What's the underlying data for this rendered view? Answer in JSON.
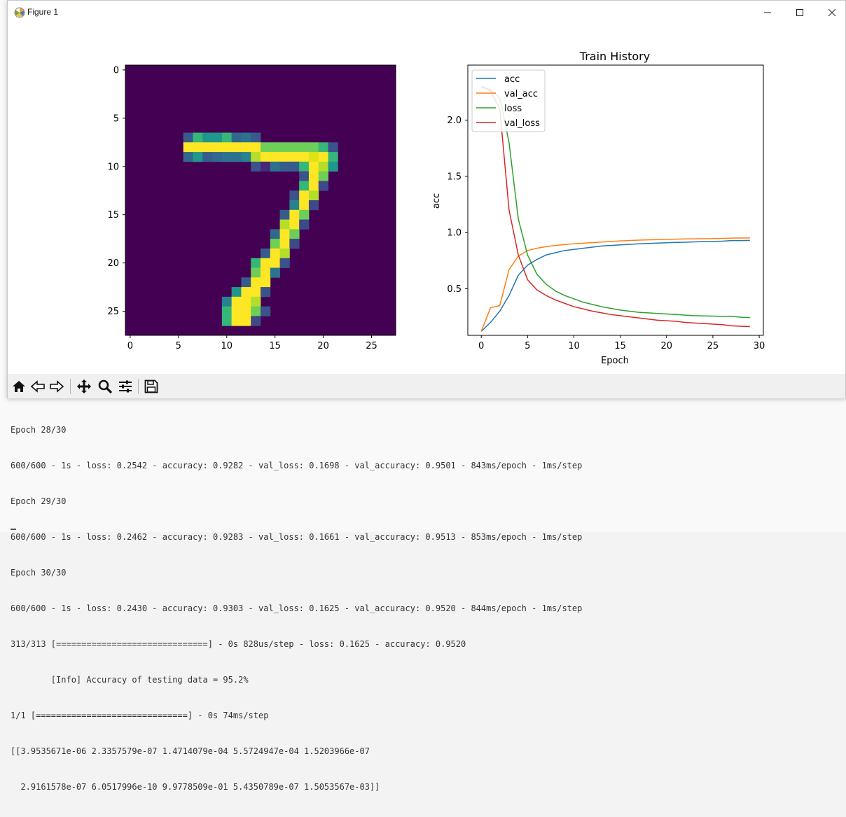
{
  "window": {
    "title": "Figure 1"
  },
  "toolbar": {
    "buttons": [
      "home-icon",
      "back-icon",
      "forward-icon",
      "pan-icon",
      "zoom-icon",
      "configure-subplots-icon",
      "save-icon"
    ]
  },
  "image_panel": {
    "x_ticks": [
      "0",
      "5",
      "10",
      "15",
      "20",
      "25"
    ],
    "y_ticks": [
      "0",
      "5",
      "10",
      "15",
      "20",
      "25"
    ],
    "colormap": "viridis",
    "size": 28,
    "pixels": [
      [
        6,
        7,
        "#365c8d"
      ],
      [
        7,
        7,
        "#35b779"
      ],
      [
        8,
        7,
        "#1f988b"
      ],
      [
        9,
        7,
        "#1f988b"
      ],
      [
        10,
        7,
        "#35b779"
      ],
      [
        11,
        7,
        "#31688e"
      ],
      [
        12,
        7,
        "#2c728e"
      ],
      [
        13,
        7,
        "#365c8d"
      ],
      [
        6,
        8,
        "#fde725"
      ],
      [
        7,
        8,
        "#fde725"
      ],
      [
        8,
        8,
        "#fde725"
      ],
      [
        9,
        8,
        "#fde725"
      ],
      [
        10,
        8,
        "#fde725"
      ],
      [
        11,
        8,
        "#fde725"
      ],
      [
        12,
        8,
        "#fde725"
      ],
      [
        13,
        8,
        "#fde725"
      ],
      [
        14,
        8,
        "#6ece58"
      ],
      [
        15,
        8,
        "#6ece58"
      ],
      [
        16,
        8,
        "#6ece58"
      ],
      [
        17,
        8,
        "#6ece58"
      ],
      [
        18,
        8,
        "#6ece58"
      ],
      [
        19,
        8,
        "#6ece58"
      ],
      [
        20,
        8,
        "#35b779"
      ],
      [
        21,
        8,
        "#3b528b"
      ],
      [
        6,
        9,
        "#31688e"
      ],
      [
        7,
        9,
        "#1f988b"
      ],
      [
        8,
        9,
        "#365c8d"
      ],
      [
        9,
        9,
        "#31688e"
      ],
      [
        10,
        9,
        "#2c728e"
      ],
      [
        11,
        9,
        "#2c728e"
      ],
      [
        12,
        9,
        "#26828e"
      ],
      [
        13,
        9,
        "#b5de2b"
      ],
      [
        14,
        9,
        "#fde725"
      ],
      [
        15,
        9,
        "#fde725"
      ],
      [
        16,
        9,
        "#fde725"
      ],
      [
        17,
        9,
        "#fde725"
      ],
      [
        18,
        9,
        "#fde725"
      ],
      [
        19,
        9,
        "#dde318"
      ],
      [
        20,
        9,
        "#fde725"
      ],
      [
        21,
        9,
        "#35b779"
      ],
      [
        13,
        10,
        "#3b528b"
      ],
      [
        14,
        10,
        "#482878"
      ],
      [
        15,
        10,
        "#2c728e"
      ],
      [
        16,
        10,
        "#365c8d"
      ],
      [
        17,
        10,
        "#365c8d"
      ],
      [
        18,
        10,
        "#35b779"
      ],
      [
        19,
        10,
        "#fde725"
      ],
      [
        20,
        10,
        "#b5de2b"
      ],
      [
        21,
        10,
        "#1f988b"
      ],
      [
        18,
        11,
        "#3b528b"
      ],
      [
        19,
        11,
        "#fde725"
      ],
      [
        20,
        11,
        "#6ece58"
      ],
      [
        18,
        12,
        "#35b779"
      ],
      [
        19,
        12,
        "#fde725"
      ],
      [
        20,
        12,
        "#3e4989"
      ],
      [
        17,
        13,
        "#3b528b"
      ],
      [
        18,
        13,
        "#fde725"
      ],
      [
        19,
        13,
        "#b5de2b"
      ],
      [
        17,
        14,
        "#26828e"
      ],
      [
        18,
        14,
        "#fde725"
      ],
      [
        19,
        14,
        "#3e4989"
      ],
      [
        16,
        15,
        "#365c8d"
      ],
      [
        17,
        15,
        "#fde725"
      ],
      [
        18,
        15,
        "#6ece58"
      ],
      [
        16,
        16,
        "#b5de2b"
      ],
      [
        17,
        16,
        "#fde725"
      ],
      [
        18,
        16,
        "#3e4989"
      ],
      [
        15,
        17,
        "#31688e"
      ],
      [
        16,
        17,
        "#fde725"
      ],
      [
        17,
        17,
        "#6ece58"
      ],
      [
        15,
        18,
        "#6ece58"
      ],
      [
        16,
        18,
        "#fde725"
      ],
      [
        17,
        18,
        "#3e4989"
      ],
      [
        14,
        19,
        "#365c8d"
      ],
      [
        15,
        19,
        "#fde725"
      ],
      [
        16,
        19,
        "#b5de2b"
      ],
      [
        13,
        20,
        "#35b779"
      ],
      [
        14,
        20,
        "#fde725"
      ],
      [
        15,
        20,
        "#fde725"
      ],
      [
        16,
        20,
        "#3b528b"
      ],
      [
        13,
        21,
        "#6ece58"
      ],
      [
        14,
        21,
        "#fde725"
      ],
      [
        15,
        21,
        "#2c728e"
      ],
      [
        12,
        22,
        "#365c8d"
      ],
      [
        13,
        22,
        "#fde725"
      ],
      [
        14,
        22,
        "#fde725"
      ],
      [
        11,
        23,
        "#1f988b"
      ],
      [
        12,
        23,
        "#fde725"
      ],
      [
        13,
        23,
        "#fde725"
      ],
      [
        14,
        23,
        "#3b528b"
      ],
      [
        10,
        24,
        "#26828e"
      ],
      [
        11,
        24,
        "#fde725"
      ],
      [
        12,
        24,
        "#fde725"
      ],
      [
        13,
        24,
        "#b5de2b"
      ],
      [
        10,
        25,
        "#35b779"
      ],
      [
        11,
        25,
        "#fde725"
      ],
      [
        12,
        25,
        "#fde725"
      ],
      [
        13,
        25,
        "#6ece58"
      ],
      [
        14,
        25,
        "#3b528b"
      ],
      [
        10,
        26,
        "#35b779"
      ],
      [
        11,
        26,
        "#fde725"
      ],
      [
        12,
        26,
        "#fde725"
      ],
      [
        13,
        26,
        "#3e4989"
      ]
    ]
  },
  "chart_data": {
    "type": "line",
    "title": "Train History",
    "xlabel": "Epoch",
    "ylabel": "acc",
    "xlim": [
      -1.45,
      30.45
    ],
    "ylim": [
      0.085,
      2.49
    ],
    "x_ticks": [
      "0",
      "5",
      "10",
      "15",
      "20",
      "25",
      "30"
    ],
    "y_ticks": [
      "0.5",
      "1.0",
      "1.5",
      "2.0"
    ],
    "legend_position": "upper-left",
    "x": [
      0,
      1,
      2,
      3,
      4,
      5,
      6,
      7,
      8,
      9,
      10,
      11,
      12,
      13,
      14,
      15,
      16,
      17,
      18,
      19,
      20,
      21,
      22,
      23,
      24,
      25,
      26,
      27,
      28,
      29
    ],
    "series": [
      {
        "name": "acc",
        "color": "#1f77b4",
        "values": [
          0.12,
          0.2,
          0.3,
          0.44,
          0.62,
          0.71,
          0.76,
          0.8,
          0.82,
          0.84,
          0.85,
          0.86,
          0.87,
          0.88,
          0.885,
          0.89,
          0.895,
          0.9,
          0.903,
          0.906,
          0.909,
          0.912,
          0.914,
          0.917,
          0.919,
          0.921,
          0.923,
          0.9282,
          0.9283,
          0.9303
        ]
      },
      {
        "name": "val_acc",
        "color": "#ff7f0e",
        "values": [
          0.12,
          0.33,
          0.35,
          0.67,
          0.79,
          0.84,
          0.86,
          0.875,
          0.885,
          0.893,
          0.9,
          0.905,
          0.91,
          0.915,
          0.92,
          0.925,
          0.929,
          0.932,
          0.935,
          0.937,
          0.939,
          0.941,
          0.943,
          0.944,
          0.945,
          0.946,
          0.947,
          0.9501,
          0.9513,
          0.952
        ]
      },
      {
        "name": "loss",
        "color": "#2ca02c",
        "values": [
          2.3,
          2.27,
          2.2,
          1.8,
          1.12,
          0.8,
          0.63,
          0.54,
          0.48,
          0.44,
          0.41,
          0.38,
          0.36,
          0.34,
          0.325,
          0.31,
          0.3,
          0.29,
          0.285,
          0.28,
          0.275,
          0.27,
          0.265,
          0.26,
          0.258,
          0.256,
          0.254,
          0.2542,
          0.2462,
          0.243
        ]
      },
      {
        "name": "val_loss",
        "color": "#d62728",
        "values": [
          2.3,
          2.26,
          2.1,
          1.2,
          0.8,
          0.58,
          0.49,
          0.44,
          0.4,
          0.37,
          0.34,
          0.32,
          0.3,
          0.285,
          0.27,
          0.26,
          0.25,
          0.24,
          0.23,
          0.22,
          0.215,
          0.21,
          0.2,
          0.195,
          0.19,
          0.185,
          0.18,
          0.1698,
          0.1661,
          0.1625
        ]
      }
    ]
  },
  "terminal": {
    "lines": [
      "Epoch 28/30",
      "600/600 - 1s - loss: 0.2542 - accuracy: 0.9282 - val_loss: 0.1698 - val_accuracy: 0.9501 - 843ms/epoch - 1ms/step",
      "Epoch 29/30",
      "600/600 - 1s - loss: 0.2462 - accuracy: 0.9283 - val_loss: 0.1661 - val_accuracy: 0.9513 - 853ms/epoch - 1ms/step",
      "Epoch 30/30",
      "600/600 - 1s - loss: 0.2430 - accuracy: 0.9303 - val_loss: 0.1625 - val_accuracy: 0.9520 - 844ms/epoch - 1ms/step",
      "313/313 [==============================] - 0s 828us/step - loss: 0.1625 - accuracy: 0.9520",
      "        [Info] Accuracy of testing data = 95.2%",
      "1/1 [==============================] - 0s 74ms/step",
      "[[3.9535671e-06 2.3357579e-07 1.4714079e-04 5.5724947e-04 1.5203966e-07",
      "  2.9161578e-07 6.0517996e-10 9.9778509e-01 5.4350789e-07 1.5053567e-03]]"
    ]
  }
}
